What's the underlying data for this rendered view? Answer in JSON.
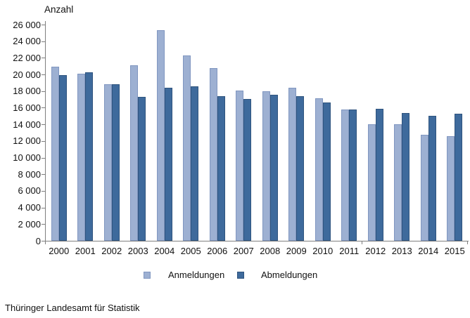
{
  "title": "Anzahl",
  "footer": "Thüringer Landesamt für Statistik",
  "legend": {
    "anmeldungen_label": "Anmeldungen",
    "abmeldungen_label": "Abmeldungen"
  },
  "colors": {
    "anmeldungen_fill": "#9db0d2",
    "anmeldungen_border": "#8096c0",
    "abmeldungen_fill": "#3e6a9c",
    "abmeldungen_border": "#2f547e",
    "axis": "#7f7f7f",
    "text": "#111111"
  },
  "chart_data": {
    "type": "bar",
    "title": "Anzahl",
    "xlabel": "",
    "ylabel": "Anzahl",
    "ylim": [
      0,
      26000
    ],
    "ytick_step": 2000,
    "ytick_labels": [
      "0",
      "2 000",
      "4 000",
      "6 000",
      "8 000",
      "10 000",
      "12 000",
      "14 000",
      "16 000",
      "18 000",
      "20 000",
      "22 000",
      "24 000",
      "26 000"
    ],
    "grid": false,
    "legend_position": "bottom",
    "categories": [
      "2000",
      "2001",
      "2002",
      "2003",
      "2004",
      "2005",
      "2006",
      "2007",
      "2008",
      "2009",
      "2010",
      "2011",
      "2012",
      "2013",
      "2014",
      "2015"
    ],
    "series": [
      {
        "name": "Anmeldungen",
        "values": [
          20950,
          20050,
          18800,
          21100,
          25350,
          22300,
          20800,
          18100,
          18000,
          18400,
          17150,
          15750,
          14000,
          14000,
          12750,
          12550
        ]
      },
      {
        "name": "Abmeldungen",
        "values": [
          19950,
          20300,
          18800,
          17300,
          18400,
          18600,
          17350,
          17050,
          17600,
          17350,
          16650,
          15800,
          15850,
          15400,
          15000,
          15250
        ]
      }
    ]
  }
}
